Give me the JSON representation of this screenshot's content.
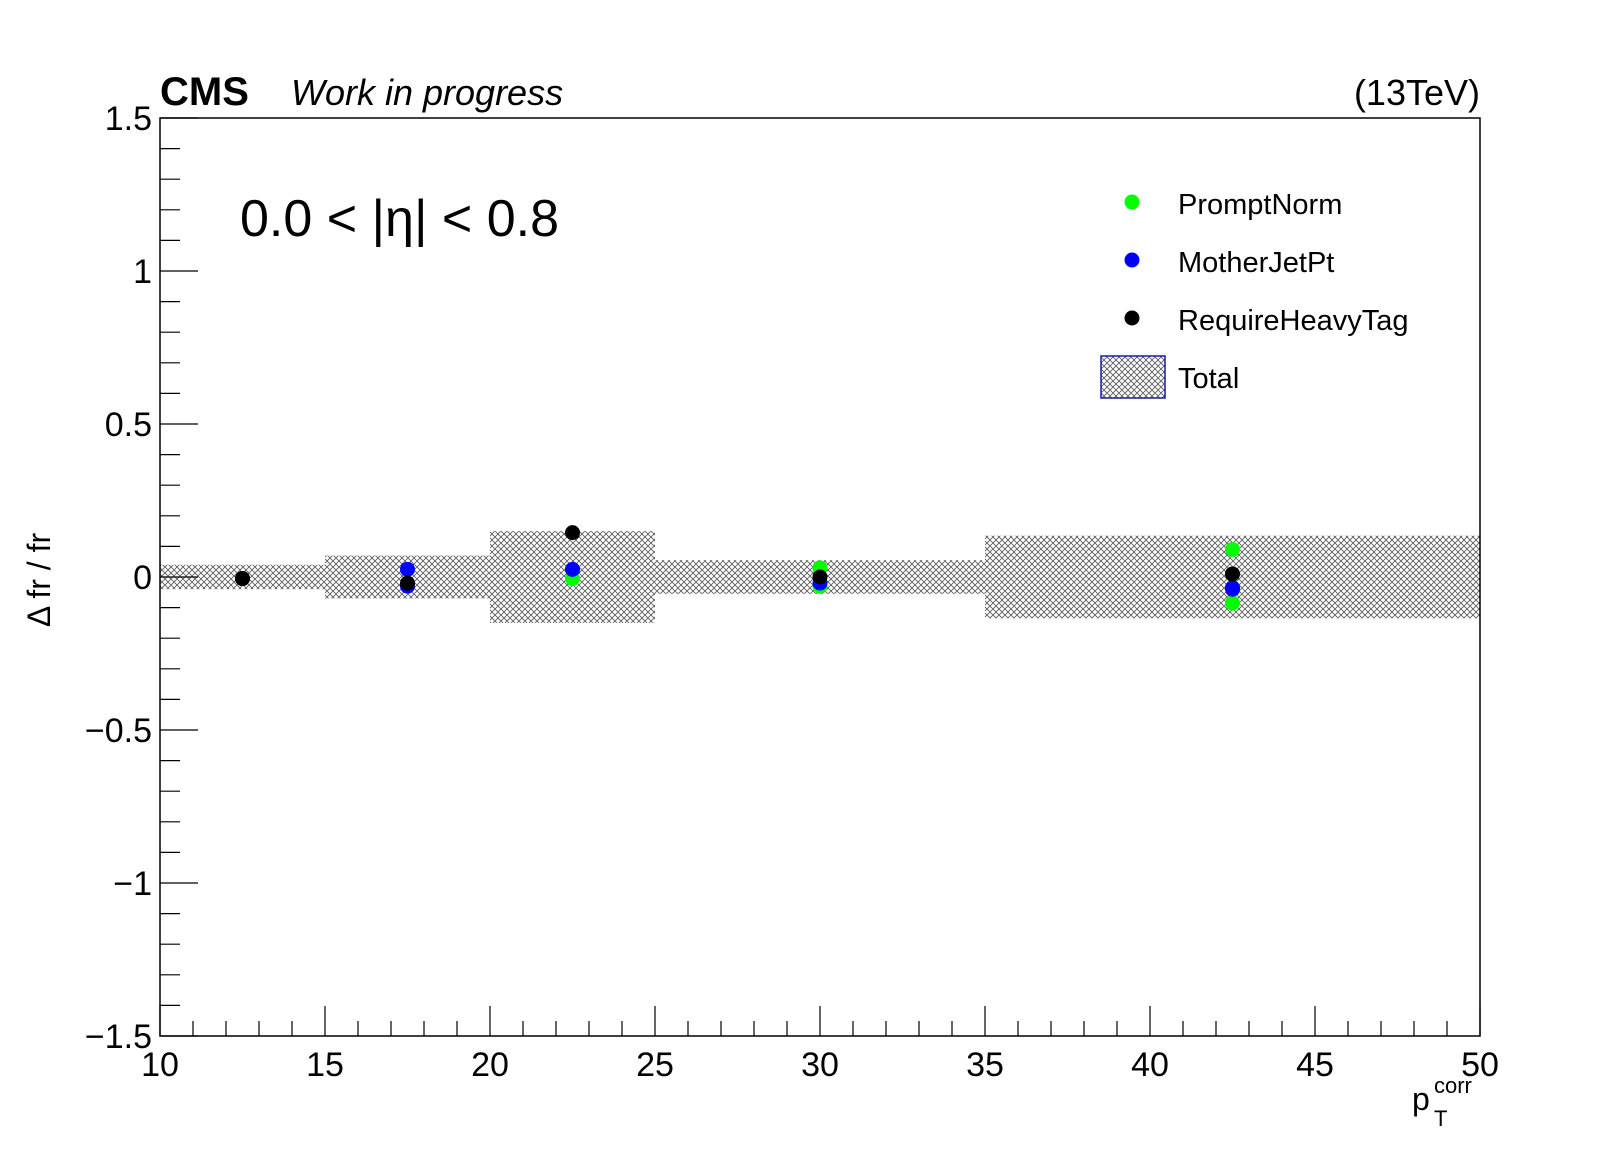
{
  "header": {
    "experiment": "CMS",
    "status": "Work in progress",
    "energy": "(13TeV)"
  },
  "chart_data": {
    "type": "scatter",
    "annotation": "0.0 < |η| < 0.8",
    "xlabel": "p",
    "xlabel_sub": "T",
    "xlabel_sup": "corr",
    "ylabel": "Δ fr / fr",
    "xlim": [
      10,
      50
    ],
    "ylim": [
      -1.5,
      1.5
    ],
    "x_ticks": [
      10,
      15,
      20,
      25,
      30,
      35,
      40,
      45,
      50
    ],
    "x_tick_labels": [
      "10",
      "15",
      "20",
      "25",
      "30",
      "35",
      "40",
      "45",
      "50"
    ],
    "y_ticks": [
      -1.5,
      -1,
      -0.5,
      0,
      0.5,
      1,
      1.5
    ],
    "y_tick_labels": [
      "−1.5",
      "−1",
      "−0.5",
      "0",
      "0.5",
      "1",
      "1.5"
    ],
    "grid": false,
    "legend_position": "top-right",
    "bins": [
      [
        10,
        15
      ],
      [
        15,
        20
      ],
      [
        20,
        25
      ],
      [
        25,
        35
      ],
      [
        35,
        50
      ]
    ],
    "x": [
      12.5,
      17.5,
      22.5,
      30,
      42.5
    ],
    "total_band": [
      0.04,
      0.07,
      0.15,
      0.055,
      0.135
    ],
    "series": [
      {
        "name": "PromptNorm",
        "color": "#00ff00",
        "values": [
          -0.005,
          -0.025,
          -0.005,
          0.03,
          0.09
        ],
        "mirror": [
          null,
          null,
          null,
          -0.03,
          -0.085
        ]
      },
      {
        "name": "MotherJetPt",
        "color": "#0000ff",
        "values": [
          -0.005,
          0.025,
          0.025,
          -0.02,
          -0.035
        ],
        "mirror": [
          null,
          -0.03,
          null,
          null,
          -0.04
        ]
      },
      {
        "name": "RequireHeavyTag",
        "color": "#000000",
        "values": [
          -0.005,
          -0.02,
          0.145,
          0.0,
          0.01
        ],
        "mirror": [
          null,
          null,
          null,
          null,
          null
        ]
      }
    ],
    "band_legend": "Total"
  }
}
